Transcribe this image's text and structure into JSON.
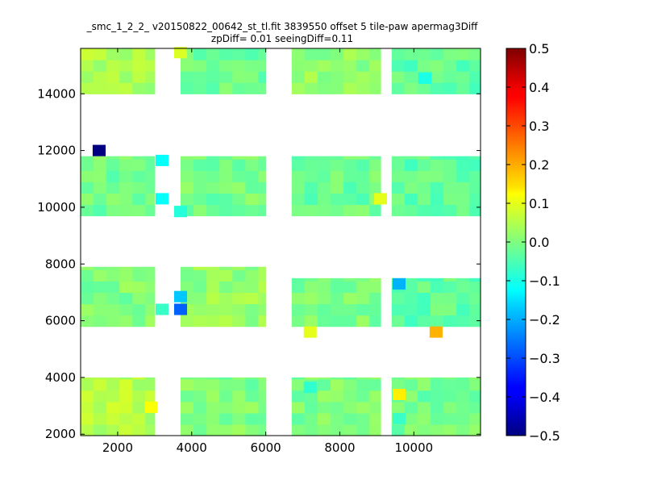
{
  "chart_data": {
    "type": "heatmap",
    "title": "_smc_1_2_2_ v20150822_00642_st_tl.fit 3839550 offset 5 tile-paw apermag3Diff",
    "subtitle": "zpDiff= 0.01 seeingDiff=0.11",
    "xlim": [
      1000,
      11800
    ],
    "ylim": [
      1950,
      15600
    ],
    "x_ticks": [
      2000,
      4000,
      6000,
      8000,
      10000
    ],
    "y_ticks": [
      2000,
      4000,
      6000,
      8000,
      10000,
      12000,
      14000
    ],
    "grid": false,
    "colormap": "jet",
    "colorbar": {
      "range": [
        -0.5,
        0.5
      ],
      "ticks": [
        "0.5",
        "0.4",
        "0.3",
        "0.2",
        "0.1",
        "0.0",
        "−0.1",
        "−0.2",
        "−0.3",
        "−0.4",
        "−0.5"
      ]
    },
    "cell_size": [
      350,
      400
    ],
    "blocks": [
      {
        "x": [
          1000,
          3000
        ],
        "y": [
          14000,
          15600
        ],
        "base": 0.04
      },
      {
        "x": [
          3700,
          6000
        ],
        "y": [
          14000,
          15600
        ],
        "base": -0.02
      },
      {
        "x": [
          6700,
          9100
        ],
        "y": [
          14000,
          15600
        ],
        "base": 0.02
      },
      {
        "x": [
          9400,
          11800
        ],
        "y": [
          14000,
          15600
        ],
        "base": -0.03
      },
      {
        "x": [
          1000,
          3000
        ],
        "y": [
          9700,
          11800
        ],
        "base": -0.01
      },
      {
        "x": [
          3700,
          6000
        ],
        "y": [
          9700,
          11800
        ],
        "base": -0.01
      },
      {
        "x": [
          6700,
          9100
        ],
        "y": [
          9700,
          11800
        ],
        "base": -0.02
      },
      {
        "x": [
          9400,
          11800
        ],
        "y": [
          9700,
          11800
        ],
        "base": -0.03
      },
      {
        "x": [
          1000,
          3000
        ],
        "y": [
          5800,
          7900
        ],
        "base": 0.0
      },
      {
        "x": [
          3700,
          6000
        ],
        "y": [
          5800,
          7900
        ],
        "base": 0.02
      },
      {
        "x": [
          6700,
          9100
        ],
        "y": [
          5800,
          7500
        ],
        "base": 0.0
      },
      {
        "x": [
          9400,
          11800
        ],
        "y": [
          5800,
          7500
        ],
        "base": -0.03
      },
      {
        "x": [
          1000,
          3000
        ],
        "y": [
          1950,
          4000
        ],
        "base": 0.05
      },
      {
        "x": [
          3700,
          6000
        ],
        "y": [
          1950,
          4000
        ],
        "base": 0.0
      },
      {
        "x": [
          6700,
          9100
        ],
        "y": [
          1950,
          4000
        ],
        "base": 0.0
      },
      {
        "x": [
          9400,
          11800
        ],
        "y": [
          1950,
          4000
        ],
        "base": -0.01
      }
    ],
    "outliers": [
      {
        "x": 1500,
        "y": 12000,
        "value": -0.5
      },
      {
        "x": 3200,
        "y": 11650,
        "value": -0.12
      },
      {
        "x": 3200,
        "y": 10300,
        "value": -0.12
      },
      {
        "x": 3700,
        "y": 9850,
        "value": -0.09
      },
      {
        "x": 3700,
        "y": 6850,
        "value": -0.18
      },
      {
        "x": 3700,
        "y": 6400,
        "value": -0.28
      },
      {
        "x": 3200,
        "y": 6400,
        "value": -0.07
      },
      {
        "x": 9600,
        "y": 7300,
        "value": -0.2
      },
      {
        "x": 7200,
        "y": 5600,
        "value": 0.1
      },
      {
        "x": 10600,
        "y": 5600,
        "value": 0.2
      },
      {
        "x": 9600,
        "y": 3400,
        "value": 0.14
      },
      {
        "x": 9600,
        "y": 2550,
        "value": -0.07
      },
      {
        "x": 7200,
        "y": 3650,
        "value": -0.08
      },
      {
        "x": 9100,
        "y": 10300,
        "value": 0.1
      },
      {
        "x": 10300,
        "y": 14550,
        "value": -0.1
      },
      {
        "x": 3700,
        "y": 15450,
        "value": 0.09
      },
      {
        "x": 2900,
        "y": 2950,
        "value": 0.12
      }
    ]
  }
}
